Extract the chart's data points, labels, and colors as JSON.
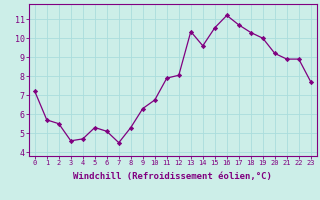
{
  "x": [
    0,
    1,
    2,
    3,
    4,
    5,
    6,
    7,
    8,
    9,
    10,
    11,
    12,
    13,
    14,
    15,
    16,
    17,
    18,
    19,
    20,
    21,
    22,
    23
  ],
  "y": [
    7.2,
    5.7,
    5.5,
    4.6,
    4.7,
    5.3,
    5.1,
    4.5,
    5.3,
    6.3,
    6.75,
    7.9,
    8.05,
    10.35,
    9.6,
    10.55,
    11.2,
    10.7,
    10.3,
    10.0,
    9.2,
    8.9,
    8.9,
    7.7
  ],
  "line_color": "#800080",
  "marker": "D",
  "marker_size": 2.2,
  "bg_color": "#cceee8",
  "grid_color": "#aadddd",
  "axis_color": "#800080",
  "tick_color": "#800080",
  "xlabel": "Windchill (Refroidissement éolien,°C)",
  "xlabel_fontsize": 6.5,
  "yticks": [
    4,
    5,
    6,
    7,
    8,
    9,
    10,
    11
  ],
  "xlim": [
    -0.5,
    23.5
  ],
  "ylim": [
    3.8,
    11.8
  ],
  "line_width": 0.9,
  "xtick_fontsize": 5.0,
  "ytick_fontsize": 6.0
}
